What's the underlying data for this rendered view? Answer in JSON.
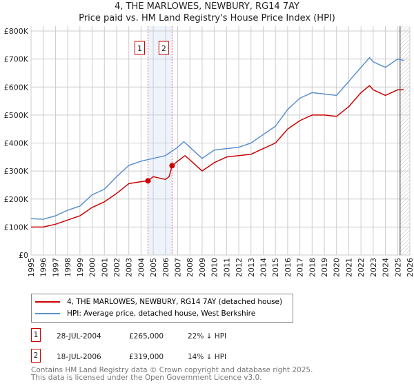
{
  "title_line1": "4, THE MARLOWES, NEWBURY, RG14 7AY",
  "title_line2": "Price paid vs. HM Land Registry's House Price Index (HPI)",
  "colors": {
    "property": "#cc0000",
    "hpi": "#5b8fd0",
    "shade": "#eef3fc",
    "grid": "#cccccc"
  },
  "chart_data": {
    "type": "line",
    "xlim": [
      1995,
      2026
    ],
    "ylim": [
      0,
      800000
    ],
    "yticks": [
      0,
      100000,
      200000,
      300000,
      400000,
      500000,
      600000,
      700000,
      800000
    ],
    "ytick_labels": [
      "£0",
      "£100K",
      "£200K",
      "£300K",
      "£400K",
      "£500K",
      "£600K",
      "£700K",
      "£800K"
    ],
    "xticks": [
      1995,
      1996,
      1997,
      1998,
      1999,
      2000,
      2001,
      2002,
      2003,
      2004,
      2005,
      2006,
      2007,
      2008,
      2009,
      2010,
      2011,
      2012,
      2013,
      2014,
      2015,
      2016,
      2017,
      2018,
      2019,
      2020,
      2021,
      2022,
      2023,
      2024,
      2025,
      2026
    ],
    "grid": true,
    "shaded_span": [
      2004.57,
      2006.54
    ],
    "forecast_from": 2025.2,
    "series": [
      {
        "name": "4, THE MARLOWES, NEWBURY, RG14 7AY (detached house)",
        "color": "#cc0000",
        "x": [
          1995,
          1996,
          1997,
          1998,
          1999,
          2000,
          2001,
          2002,
          2003,
          2004,
          2004.57,
          2005,
          2006,
          2006.3,
          2006.54,
          2007,
          2007.6,
          2008,
          2009,
          2010,
          2011,
          2012,
          2013,
          2014,
          2015,
          2016,
          2017,
          2018,
          2019,
          2020,
          2021,
          2022,
          2022.7,
          2023,
          2024,
          2025,
          2025.5
        ],
        "y": [
          100000,
          100000,
          110000,
          125000,
          140000,
          170000,
          190000,
          220000,
          255000,
          262000,
          265000,
          280000,
          270000,
          280000,
          319000,
          335000,
          355000,
          340000,
          300000,
          330000,
          350000,
          355000,
          360000,
          380000,
          400000,
          450000,
          480000,
          500000,
          500000,
          495000,
          530000,
          580000,
          605000,
          590000,
          570000,
          590000,
          590000
        ]
      },
      {
        "name": "HPI: Average price, detached house, West Berkshire",
        "color": "#5b8fd0",
        "x": [
          1995,
          1996,
          1997,
          1998,
          1999,
          2000,
          2001,
          2002,
          2003,
          2004,
          2005,
          2006,
          2007,
          2007.5,
          2008,
          2009,
          2010,
          2011,
          2012,
          2013,
          2014,
          2015,
          2016,
          2017,
          2018,
          2019,
          2020,
          2021,
          2022,
          2022.7,
          2023,
          2024,
          2025,
          2025.5
        ],
        "y": [
          130000,
          128000,
          140000,
          160000,
          175000,
          215000,
          235000,
          280000,
          320000,
          335000,
          345000,
          355000,
          385000,
          405000,
          385000,
          345000,
          375000,
          380000,
          385000,
          400000,
          430000,
          460000,
          520000,
          560000,
          580000,
          575000,
          570000,
          620000,
          670000,
          705000,
          690000,
          670000,
          700000,
          695000
        ]
      }
    ],
    "markers": [
      {
        "label": "1",
        "x": 2004.57,
        "y": 265000
      },
      {
        "label": "2",
        "x": 2006.54,
        "y": 319000
      }
    ]
  },
  "legend": [
    {
      "label": "4, THE MARLOWES, NEWBURY, RG14 7AY (detached house)"
    },
    {
      "label": "HPI: Average price, detached house, West Berkshire"
    }
  ],
  "sales": [
    {
      "num": "1",
      "date": "28-JUL-2004",
      "price": "£265,000",
      "hpi": "22% ↓ HPI"
    },
    {
      "num": "2",
      "date": "18-JUL-2006",
      "price": "£319,000",
      "hpi": "14% ↓ HPI"
    }
  ],
  "footer_line1": "Contains HM Land Registry data © Crown copyright and database right 2025.",
  "footer_line2": "This data is licensed under the Open Government Licence v3.0."
}
